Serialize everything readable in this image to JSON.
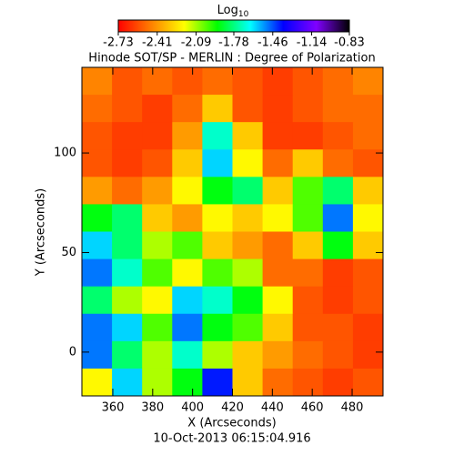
{
  "chart_data": {
    "type": "heatmap",
    "title": "Hinode SOT/SP - MERLIN : Degree of Polarization",
    "subtitle": "10-Oct-2013 06:15:04.916",
    "xlabel": "X (Arcseconds)",
    "ylabel": "Y (Arcseconds)",
    "colorbar_title": "Log",
    "colorbar_title_subscript": "10",
    "xlim": [
      344.5,
      495.5
    ],
    "ylim": [
      -22,
      143
    ],
    "xticks": [
      360,
      380,
      400,
      420,
      440,
      460,
      480
    ],
    "yticks": [
      0,
      50,
      100
    ],
    "zlim": [
      -2.73,
      -0.83
    ],
    "colorbar_ticks": [
      -2.73,
      -2.41,
      -2.09,
      -1.78,
      -1.46,
      -1.14,
      -0.83
    ],
    "colormap": [
      "#ff0000",
      "#ff8000",
      "#ffff00",
      "#00ff00",
      "#00ffff",
      "#0000ff",
      "#8000ff",
      "#000000"
    ],
    "z": [
      [
        -2.45,
        -2.55,
        -2.5,
        -2.55,
        -2.5,
        -2.55,
        -2.6,
        -2.55,
        -2.5,
        -2.45
      ],
      [
        -2.5,
        -2.55,
        -2.6,
        -2.5,
        -2.3,
        -2.55,
        -2.6,
        -2.55,
        -2.5,
        -2.5
      ],
      [
        -2.55,
        -2.6,
        -2.6,
        -2.4,
        -1.7,
        -2.3,
        -2.6,
        -2.6,
        -2.55,
        -2.5
      ],
      [
        -2.55,
        -2.6,
        -2.55,
        -2.3,
        -1.6,
        -2.2,
        -2.5,
        -2.3,
        -2.5,
        -2.55
      ],
      [
        -2.4,
        -2.5,
        -2.4,
        -2.2,
        -1.9,
        -1.8,
        -2.3,
        -2.0,
        -1.8,
        -2.3
      ],
      [
        -1.9,
        -1.8,
        -2.3,
        -2.4,
        -2.2,
        -2.3,
        -2.2,
        -2.0,
        -1.5,
        -2.2
      ],
      [
        -1.6,
        -1.8,
        -2.1,
        -2.0,
        -2.3,
        -2.4,
        -2.5,
        -2.3,
        -1.9,
        -2.3
      ],
      [
        -1.5,
        -1.7,
        -2.0,
        -2.2,
        -2.0,
        -2.1,
        -2.5,
        -2.5,
        -2.6,
        -2.55
      ],
      [
        -1.8,
        -2.1,
        -2.2,
        -1.6,
        -1.7,
        -1.9,
        -2.2,
        -2.55,
        -2.6,
        -2.55
      ],
      [
        -1.5,
        -1.6,
        -2.0,
        -1.5,
        -1.9,
        -2.0,
        -2.3,
        -2.55,
        -2.55,
        -2.6
      ],
      [
        -1.5,
        -1.8,
        -2.1,
        -1.7,
        -2.1,
        -2.3,
        -2.4,
        -2.5,
        -2.55,
        -2.6
      ],
      [
        -2.2,
        -1.6,
        -2.1,
        -1.9,
        -1.4,
        -2.3,
        -2.5,
        -2.55,
        -2.6,
        -2.55
      ]
    ]
  }
}
